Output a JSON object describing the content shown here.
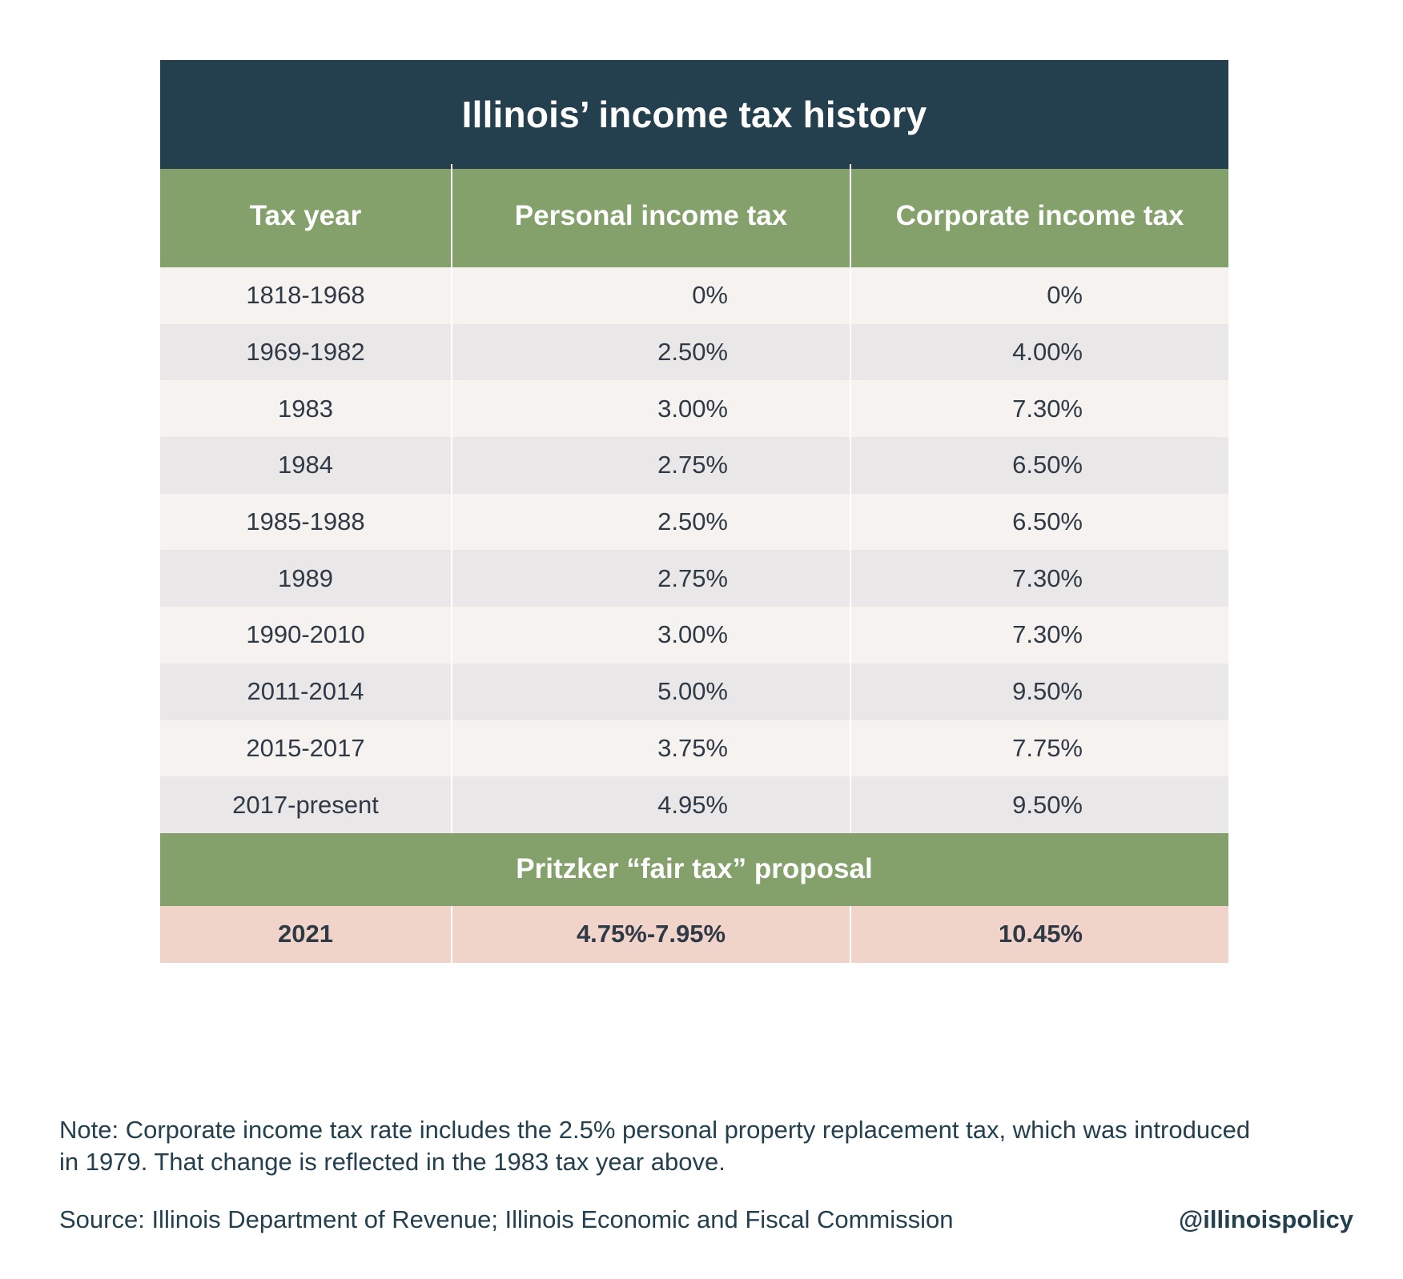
{
  "chart_data": {
    "type": "table",
    "title": "Illinois’ income tax history",
    "columns": [
      "Tax year",
      "Personal income tax",
      "Corporate income tax"
    ],
    "rows": [
      {
        "year": "1818-1968",
        "personal": "0%",
        "corporate": "0%"
      },
      {
        "year": "1969-1982",
        "personal": "2.50%",
        "corporate": "4.00%"
      },
      {
        "year": "1983",
        "personal": "3.00%",
        "corporate": "7.30%"
      },
      {
        "year": "1984",
        "personal": "2.75%",
        "corporate": "6.50%"
      },
      {
        "year": "1985-1988",
        "personal": "2.50%",
        "corporate": "6.50%"
      },
      {
        "year": "1989",
        "personal": "2.75%",
        "corporate": "7.30%"
      },
      {
        "year": "1990-2010",
        "personal": "3.00%",
        "corporate": "7.30%"
      },
      {
        "year": "2011-2014",
        "personal": "5.00%",
        "corporate": "9.50%"
      },
      {
        "year": "2015-2017",
        "personal": "3.75%",
        "corporate": "7.75%"
      },
      {
        "year": "2017-present",
        "personal": "4.95%",
        "corporate": "9.50%"
      }
    ],
    "proposal": {
      "label": "Pritzker “fair tax” proposal",
      "year": "2021",
      "personal": "4.75%-7.95%",
      "corporate": "10.45%"
    }
  },
  "footer": {
    "note": "Note:  Corporate income tax rate includes the 2.5% personal property replacement tax, which was introduced in 1979. That change is reflected in the 1983 tax year above.",
    "source": "Source: Illinois Department of Revenue; Illinois Economic and Fiscal Commission",
    "handle": "@illinoispolicy"
  },
  "colors": {
    "title_bg": "#24404f",
    "header_bg": "#84a06b",
    "row_light": "#f5f2ef",
    "row_dark": "#e9e7e7",
    "proposal_row_bg": "#f0d3c9",
    "text": "#2f3a46"
  }
}
